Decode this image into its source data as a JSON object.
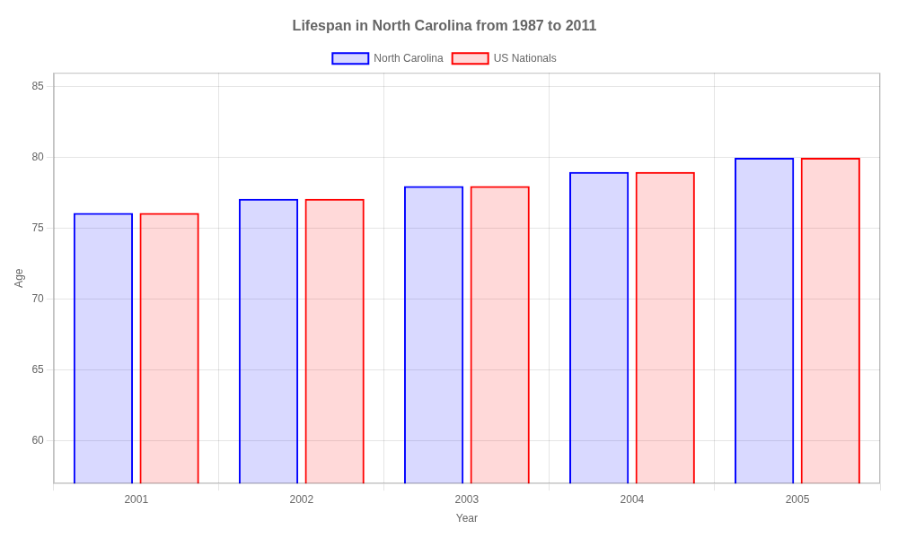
{
  "chart_data": {
    "type": "bar",
    "title": "Lifespan in North Carolina from 1987 to 2011",
    "x_label": "Year",
    "y_label": "Age",
    "categories": [
      "2001",
      "2002",
      "2003",
      "2004",
      "2005"
    ],
    "series": [
      {
        "name": "North Carolina",
        "color": "#0000ff",
        "values": [
          76.1,
          77.1,
          78.0,
          79.0,
          80.0
        ]
      },
      {
        "name": "US Nationals",
        "color": "#ff0000",
        "values": [
          76.1,
          77.1,
          78.0,
          79.0,
          80.0
        ]
      }
    ],
    "ylim": [
      57,
      86
    ],
    "yticks": [
      60,
      65,
      70,
      75,
      80,
      85
    ],
    "grid": true,
    "legend": "top"
  }
}
